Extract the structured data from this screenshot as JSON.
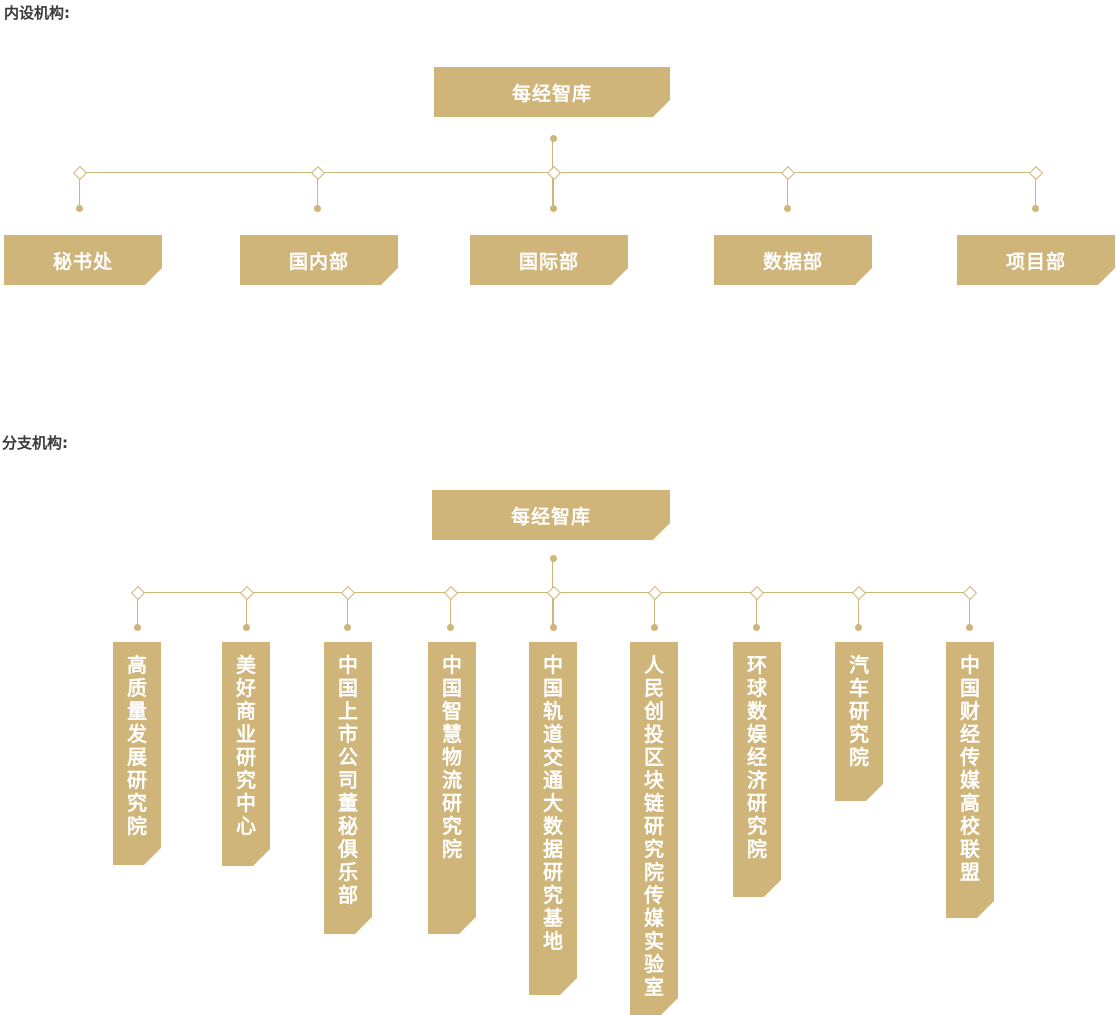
{
  "accent_color": "#cfb57a",
  "internal": {
    "label": "内设机构:",
    "root": "每经智库",
    "children": [
      "秘书处",
      "国内部",
      "国际部",
      "数据部",
      "项目部"
    ]
  },
  "branches": {
    "label": "分支机构:",
    "root": "每经智库",
    "children": [
      "高质量发展研究院",
      "美好商业研究中心",
      "中国上市公司董秘俱乐部",
      "中国智慧物流研究院",
      "中国轨道交通大数据研究基地",
      "人民创投区块链研究院传媒实验室",
      "环球数娱经济研究院",
      "汽车研究院",
      "中国财经传媒高校联盟"
    ]
  }
}
